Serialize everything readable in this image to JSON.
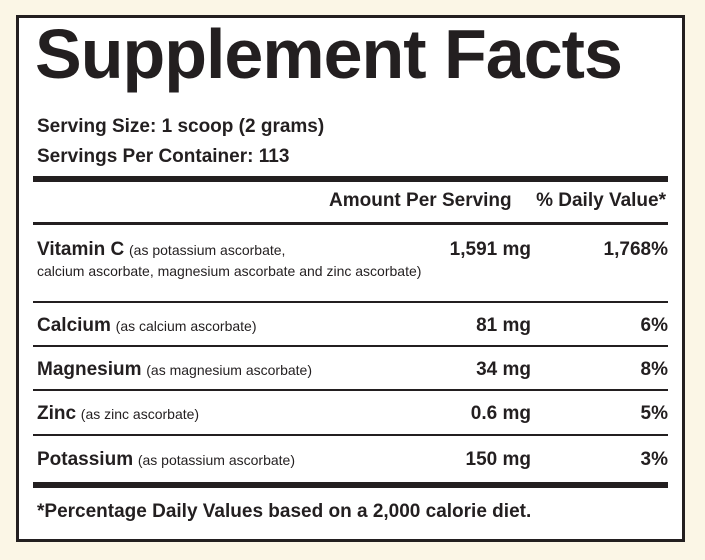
{
  "title": "Supplement Facts",
  "serving_size": "Serving Size: 1 scoop (2 grams)",
  "servings_per_container": "Servings Per Container: 113",
  "columns": {
    "amount": "Amount Per Serving",
    "daily_value": "% Daily Value*"
  },
  "nutrients": [
    {
      "name": "Vitamin C",
      "source_line1": "(as potassium ascorbate,",
      "source_line2": "calcium ascorbate, magnesium ascorbate and zinc ascorbate)",
      "amount": "1,591 mg",
      "dv": "1,768%"
    },
    {
      "name": "Calcium",
      "source_line1": "(as calcium ascorbate)",
      "amount": "81 mg",
      "dv": "6%"
    },
    {
      "name": "Magnesium",
      "source_line1": "(as magnesium ascorbate)",
      "amount": "34 mg",
      "dv": "8%"
    },
    {
      "name": "Zinc",
      "source_line1": "(as zinc ascorbate)",
      "amount": "0.6 mg",
      "dv": "5%"
    },
    {
      "name": "Potassium",
      "source_line1": "(as potassium ascorbate)",
      "amount": "150 mg",
      "dv": "3%"
    }
  ],
  "footnote": "*Percentage Daily Values based on a 2,000 calorie diet."
}
